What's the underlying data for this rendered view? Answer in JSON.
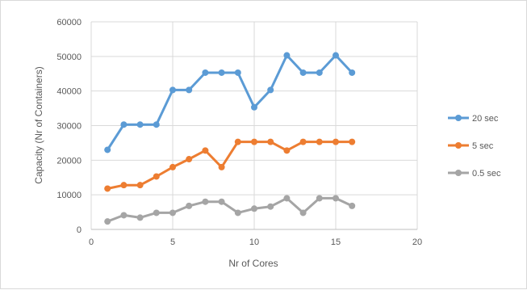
{
  "chart_data": {
    "type": "line",
    "title": "",
    "xlabel": "Nr of Cores",
    "ylabel": "Capacity (Nr of Containers)",
    "xlim": [
      0,
      20
    ],
    "ylim": [
      0,
      60000
    ],
    "x_ticks": [
      0,
      5,
      10,
      15,
      20
    ],
    "y_ticks": [
      0,
      10000,
      20000,
      30000,
      40000,
      50000,
      60000
    ],
    "grid": "horizontal",
    "legend_position": "right",
    "x": [
      1,
      2,
      3,
      4,
      5,
      6,
      7,
      8,
      9,
      10,
      11,
      12,
      13,
      14,
      15,
      16
    ],
    "series": [
      {
        "name": "20 sec",
        "color": "#5b9bd5",
        "values": [
          23000,
          30300,
          30300,
          30300,
          40300,
          40300,
          45300,
          45300,
          45300,
          35300,
          40300,
          50300,
          45300,
          45300,
          50300,
          45300
        ]
      },
      {
        "name": "5 sec",
        "color": "#ed7d31",
        "values": [
          11800,
          12800,
          12800,
          15300,
          18000,
          20300,
          22800,
          18000,
          25300,
          25300,
          25300,
          22800,
          25300,
          25300,
          25300,
          25300
        ]
      },
      {
        "name": "0.5 sec",
        "color": "#a5a5a5",
        "values": [
          2300,
          4100,
          3400,
          4800,
          4800,
          6800,
          8000,
          8000,
          4800,
          6000,
          6600,
          9000,
          4800,
          9000,
          9000,
          6800
        ]
      }
    ]
  }
}
